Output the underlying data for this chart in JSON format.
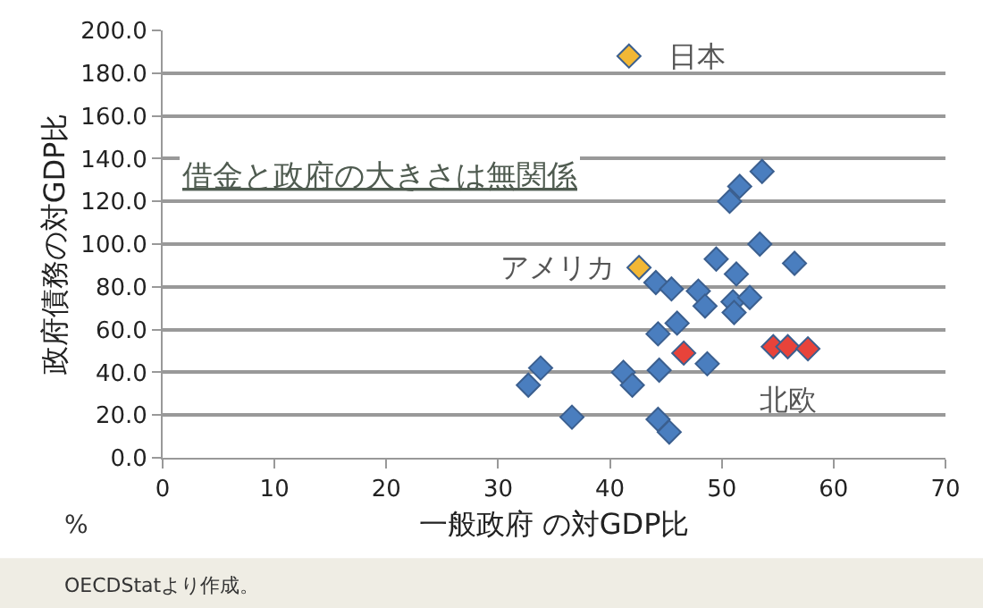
{
  "chart_data": {
    "type": "scatter",
    "xlabel": "一般政府 の対GDP比",
    "ylabel": "政府債務の対GDP比",
    "xlim": [
      0,
      70
    ],
    "xticks": [
      0,
      10,
      20,
      30,
      40,
      50,
      60,
      70
    ],
    "ylim": [
      0,
      200
    ],
    "yticks": [
      {
        "value": 0,
        "label": "0.0"
      },
      {
        "value": 20,
        "label": "20.0"
      },
      {
        "value": 40,
        "label": "40.0"
      },
      {
        "value": 60,
        "label": "60.0"
      },
      {
        "value": 80,
        "label": "80.0"
      },
      {
        "value": 100,
        "label": "100.0"
      },
      {
        "value": 120,
        "label": "120.0"
      },
      {
        "value": 140,
        "label": "140.0"
      },
      {
        "value": 160,
        "label": "160.0"
      },
      {
        "value": 180,
        "label": "180.0"
      },
      {
        "value": 200,
        "label": "200.0"
      }
    ],
    "grid": "y",
    "marker": "diamond",
    "series": [
      {
        "color": "#4a7ebf",
        "x": [
          53.6,
          51.6,
          50.7,
          53.4,
          49.5,
          56.5,
          51.3,
          44.1,
          45.5,
          47.9,
          48.5,
          51.0,
          52.5,
          51.1,
          46.0,
          44.3,
          48.7,
          44.4,
          41.2,
          42.0,
          33.8,
          32.7,
          36.6,
          44.3,
          45.3
        ],
        "values": [
          134,
          127,
          120,
          100,
          93,
          91,
          86,
          82,
          79,
          78,
          71,
          73,
          75,
          68,
          63,
          58,
          44,
          41,
          40,
          34,
          42,
          34,
          19,
          18,
          12
        ]
      },
      {
        "color": "#e8433a",
        "x": [
          46.6,
          54.6,
          55.9,
          57.7
        ],
        "values": [
          49,
          52,
          52,
          51
        ]
      },
      {
        "color": "#f2b735",
        "x": [
          41.7,
          42.6
        ],
        "values": [
          188,
          89
        ]
      }
    ],
    "annotations": [
      {
        "text": "日本",
        "x": 41.7,
        "y": 188
      },
      {
        "text": "アメリカ",
        "x": 42.6,
        "y": 89
      },
      {
        "text": "北欧",
        "x": 55.9,
        "y": 52
      },
      "借金と政府の大きさは無関係",
      "%",
      "OECDStatより作成。"
    ]
  }
}
